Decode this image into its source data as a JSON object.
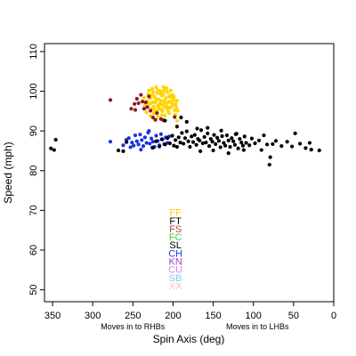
{
  "chart_data": {
    "type": "scatter",
    "xlabel": "Spin Axis (deg)",
    "ylabel": "Speed (mph)",
    "xlim": [
      360,
      0
    ],
    "ylim": [
      47,
      112
    ],
    "x_ticks": [
      350,
      300,
      250,
      200,
      150,
      100,
      50,
      0
    ],
    "y_ticks": [
      50,
      60,
      70,
      80,
      90,
      100,
      110
    ],
    "x_direction_labels": [
      {
        "text": "Moves in to RHBs",
        "x": 250
      },
      {
        "text": "Moves in to LHBs",
        "x": 95
      }
    ],
    "legend": [
      {
        "name": "FF",
        "color": "#ffd400"
      },
      {
        "name": "FT",
        "color": "#000000"
      },
      {
        "name": "FS",
        "color": "#c04040"
      },
      {
        "name": "FC",
        "color": "#40d040"
      },
      {
        "name": "SL",
        "color": "#000000"
      },
      {
        "name": "CH",
        "color": "#2040e0"
      },
      {
        "name": "KN",
        "color": "#a040d0"
      },
      {
        "name": "CU",
        "color": "#e080e0"
      },
      {
        "name": "SB",
        "color": "#80d0f0"
      },
      {
        "name": "XX",
        "color": "#ffc0c0"
      }
    ],
    "legend_x": 197,
    "legend_y_top": 69.5,
    "legend_y_step": 2.05,
    "series": [
      {
        "name": "FF",
        "color": "#ffd400",
        "points": [
          [
            232,
            97.5
          ],
          [
            230,
            96.8
          ],
          [
            228,
            98.2
          ],
          [
            227,
            95.6
          ],
          [
            226,
            99.1
          ],
          [
            225,
            97.2
          ],
          [
            224,
            96.1
          ],
          [
            223,
            98.6
          ],
          [
            222,
            95.1
          ],
          [
            221,
            97.9
          ],
          [
            220,
            99.6
          ],
          [
            219,
            96.4
          ],
          [
            218,
            98.0
          ],
          [
            217,
            100.1
          ],
          [
            216,
            97.0
          ],
          [
            215,
            95.4
          ],
          [
            214,
            98.9
          ],
          [
            213,
            96.7
          ],
          [
            212,
            99.3
          ],
          [
            211,
            97.6
          ],
          [
            210,
            100.4
          ],
          [
            209,
            98.3
          ],
          [
            208,
            96.2
          ],
          [
            207,
            99.8
          ],
          [
            206,
            97.3
          ],
          [
            205,
            98.7
          ],
          [
            204,
            95.9
          ],
          [
            203,
            99.0
          ],
          [
            202,
            97.1
          ],
          [
            201,
            98.4
          ],
          [
            200,
            96.6
          ],
          [
            199,
            97.8
          ],
          [
            198,
            95.2
          ],
          [
            197,
            94.1
          ],
          [
            196,
            96.0
          ],
          [
            195,
            92.6
          ],
          [
            228,
            93.8
          ],
          [
            224,
            94.4
          ],
          [
            219,
            93.6
          ],
          [
            214,
            94.0
          ],
          [
            210,
            93.9
          ],
          [
            205,
            94.5
          ],
          [
            230,
            100.2
          ],
          [
            226,
            100.6
          ],
          [
            221,
            101.0
          ],
          [
            216,
            99.4
          ],
          [
            212,
            101.1
          ],
          [
            208,
            100.8
          ],
          [
            203,
            100.2
          ],
          [
            200,
            99.0
          ],
          [
            235,
            96.3
          ],
          [
            236,
            98.4
          ],
          [
            233,
            94.7
          ],
          [
            224,
            95.8
          ],
          [
            218,
            95.6
          ],
          [
            213,
            95.0
          ],
          [
            211,
            96.0
          ],
          [
            207,
            95.6
          ],
          [
            202,
            96.0
          ],
          [
            199,
            98.6
          ],
          [
            222,
            97.2
          ],
          [
            217,
            96.4
          ],
          [
            215,
            97.6
          ],
          [
            209,
            97.0
          ],
          [
            206,
            94.9
          ],
          [
            204,
            97.5
          ],
          [
            220,
            94.8
          ],
          [
            227,
            97.0
          ],
          [
            231,
            99.2
          ],
          [
            225,
            99.9
          ],
          [
            219,
            100.2
          ],
          [
            213,
            100.0
          ],
          [
            197,
            96.8
          ],
          [
            195,
            97.6
          ],
          [
            194,
            95.1
          ]
        ]
      },
      {
        "name": "FS",
        "color": "#8b1a1a",
        "points": [
          [
            278,
            97.8
          ],
          [
            252,
            95.6
          ],
          [
            248,
            96.8
          ],
          [
            247,
            95.3
          ],
          [
            245,
            98.1
          ],
          [
            243,
            97.0
          ],
          [
            240,
            99.1
          ],
          [
            238,
            97.4
          ],
          [
            236,
            95.6
          ],
          [
            234,
            97.2
          ],
          [
            232,
            96.0
          ],
          [
            230,
            98.7
          ],
          [
            228,
            95.1
          ],
          [
            225,
            93.4
          ],
          [
            222,
            92.8
          ],
          [
            220,
            94.5
          ],
          [
            215,
            93.0
          ],
          [
            212,
            92.7
          ],
          [
            198,
            93.5
          ]
        ]
      },
      {
        "name": "CH",
        "color": "#1a33dd",
        "points": [
          [
            278,
            87.3
          ],
          [
            262,
            86.4
          ],
          [
            258,
            87.8
          ],
          [
            255,
            88.2
          ],
          [
            253,
            85.9
          ],
          [
            251,
            87.1
          ],
          [
            249,
            86.3
          ],
          [
            247,
            88.9
          ],
          [
            245,
            87.4
          ],
          [
            243,
            86.6
          ],
          [
            241,
            89.1
          ],
          [
            239,
            87.7
          ],
          [
            237,
            86.2
          ],
          [
            235,
            88.4
          ],
          [
            233,
            87.0
          ],
          [
            231,
            89.6
          ],
          [
            229,
            86.8
          ],
          [
            227,
            88.1
          ],
          [
            225,
            87.3
          ],
          [
            223,
            86.0
          ],
          [
            221,
            88.8
          ],
          [
            219,
            87.5
          ],
          [
            217,
            86.4
          ],
          [
            215,
            89.2
          ],
          [
            213,
            87.9
          ],
          [
            211,
            86.7
          ],
          [
            209,
            88.4
          ],
          [
            207,
            87.0
          ],
          [
            205,
            88.6
          ],
          [
            230,
            90.0
          ],
          [
            240,
            85.3
          ],
          [
            226,
            85.8
          ]
        ]
      },
      {
        "name": "SL",
        "color": "#000000",
        "points": [
          [
            352,
            85.6
          ],
          [
            346,
            87.8
          ],
          [
            348,
            85.2
          ],
          [
            268,
            85.1
          ],
          [
            262,
            84.9
          ],
          [
            258,
            87.2
          ],
          [
            225,
            85.8
          ],
          [
            221,
            87.4
          ],
          [
            217,
            86.1
          ],
          [
            214,
            87.9
          ],
          [
            210,
            86.6
          ],
          [
            207,
            88.2
          ],
          [
            204,
            86.9
          ],
          [
            201,
            88.8
          ],
          [
            199,
            86.3
          ],
          [
            197,
            87.7
          ],
          [
            195,
            86.0
          ],
          [
            193,
            88.4
          ],
          [
            191,
            87.1
          ],
          [
            189,
            89.5
          ],
          [
            187,
            86.8
          ],
          [
            185,
            88.2
          ],
          [
            183,
            89.9
          ],
          [
            181,
            87.4
          ],
          [
            179,
            86.0
          ],
          [
            177,
            88.6
          ],
          [
            175,
            87.2
          ],
          [
            173,
            89.0
          ],
          [
            171,
            86.5
          ],
          [
            169,
            88.0
          ],
          [
            167,
            87.6
          ],
          [
            165,
            90.2
          ],
          [
            163,
            86.9
          ],
          [
            161,
            88.5
          ],
          [
            159,
            87.1
          ],
          [
            157,
            89.4
          ],
          [
            155,
            86.2
          ],
          [
            153,
            88.0
          ],
          [
            151,
            87.3
          ],
          [
            149,
            89.0
          ],
          [
            147,
            86.7
          ],
          [
            145,
            88.3
          ],
          [
            143,
            87.5
          ],
          [
            141,
            85.9
          ],
          [
            139,
            88.7
          ],
          [
            137,
            87.0
          ],
          [
            135,
            86.3
          ],
          [
            133,
            88.9
          ],
          [
            131,
            87.6
          ],
          [
            129,
            86.0
          ],
          [
            127,
            88.2
          ],
          [
            125,
            87.4
          ],
          [
            123,
            86.5
          ],
          [
            121,
            89.3
          ],
          [
            119,
            85.6
          ],
          [
            117,
            88.0
          ],
          [
            115,
            87.1
          ],
          [
            113,
            86.3
          ],
          [
            111,
            88.6
          ],
          [
            109,
            87.0
          ],
          [
            105,
            86.4
          ],
          [
            102,
            88.1
          ],
          [
            98,
            86.9
          ],
          [
            93,
            87.6
          ],
          [
            90,
            85.2
          ],
          [
            87,
            88.9
          ],
          [
            83,
            86.6
          ],
          [
            80,
            81.5
          ],
          [
            79,
            83.4
          ],
          [
            76,
            86.7
          ],
          [
            72,
            87.5
          ],
          [
            65,
            86.2
          ],
          [
            58,
            87.3
          ],
          [
            52,
            86.1
          ],
          [
            48,
            89.4
          ],
          [
            42,
            86.8
          ],
          [
            35,
            85.7
          ],
          [
            30,
            87.0
          ],
          [
            28,
            85.3
          ],
          [
            18,
            85.1
          ],
          [
            195,
            91.1
          ],
          [
            183,
            92.3
          ],
          [
            170,
            90.6
          ],
          [
            157,
            90.8
          ],
          [
            140,
            90.1
          ],
          [
            122,
            89.2
          ],
          [
            210,
            92.6
          ],
          [
            190,
            93.4
          ],
          [
            166,
            84.9
          ],
          [
            150,
            85.1
          ],
          [
            131,
            84.4
          ],
          [
            112,
            85.2
          ]
        ]
      }
    ]
  }
}
